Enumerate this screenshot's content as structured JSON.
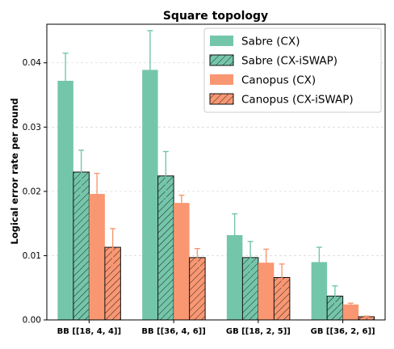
{
  "chart_data": {
    "type": "bar",
    "title": "Square topology",
    "xlabel": "",
    "ylabel": "Logical error rate per round",
    "ylim": [
      0,
      0.046
    ],
    "yticks": [
      "0.00",
      "0.01",
      "0.02",
      "0.03",
      "0.04"
    ],
    "grid": true,
    "legend_position": "top-right",
    "categories": [
      "BB [[18, 4, 4]]",
      "BB [[36, 4, 6]]",
      "GB [[18, 2, 5]]",
      "GB [[36, 2, 6]]"
    ],
    "series": [
      {
        "name": "Sabre (CX)",
        "color": "#74c6aa",
        "hatch": false,
        "values": [
          0.0372,
          0.0389,
          0.0132,
          0.009
        ],
        "errors": [
          0.0043,
          0.0061,
          0.0033,
          0.0023
        ]
      },
      {
        "name": "Sabre (CX-iSWAP)",
        "color": "#74c6aa",
        "hatch": true,
        "values": [
          0.023,
          0.0224,
          0.0097,
          0.0037
        ],
        "errors": [
          0.0034,
          0.0038,
          0.0025,
          0.0016
        ]
      },
      {
        "name": "Canopus (CX)",
        "color": "#f99772",
        "hatch": false,
        "values": [
          0.0196,
          0.0182,
          0.0089,
          0.0024
        ],
        "errors": [
          0.0032,
          0.0012,
          0.0021,
          0.0002
        ]
      },
      {
        "name": "Canopus (CX-iSWAP)",
        "color": "#f99772",
        "hatch": true,
        "values": [
          0.0113,
          0.0097,
          0.0066,
          0.0005
        ],
        "errors": [
          0.0029,
          0.0014,
          0.0021,
          0.0001
        ]
      }
    ]
  }
}
